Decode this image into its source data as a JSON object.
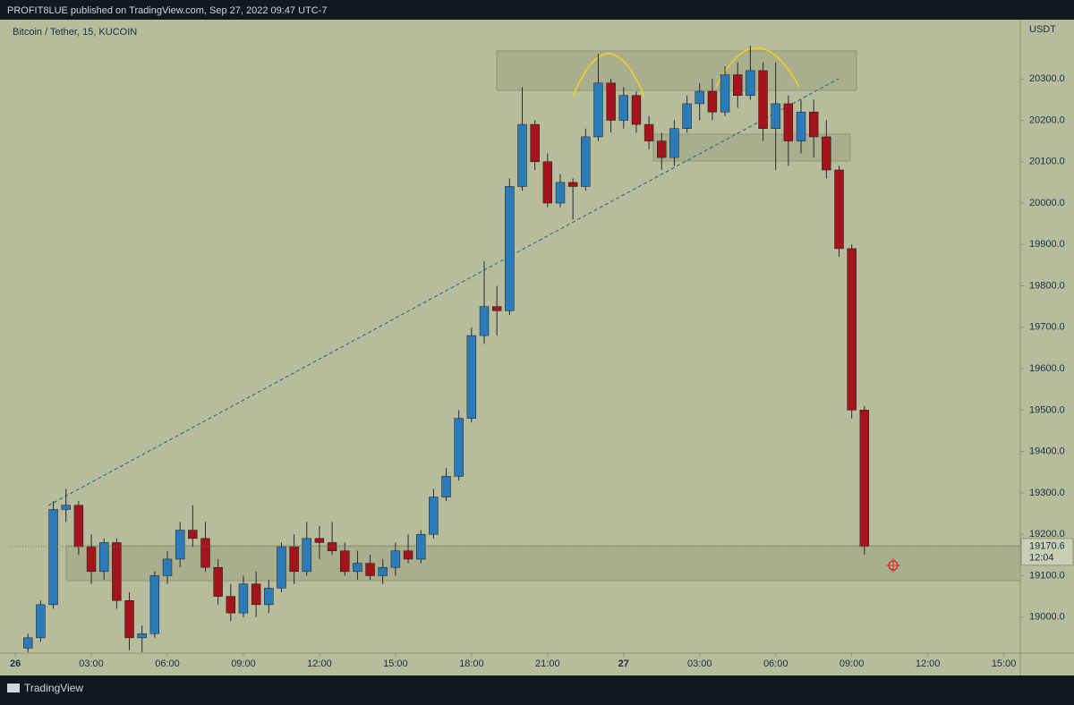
{
  "header": "PROFIT8LUE published on TradingView.com, Sep 27, 2022 09:47 UTC-7",
  "footer": "TradingView",
  "chart_data": {
    "type": "candlestick",
    "title": "Bitcoin / Tether, 15, KUCOIN",
    "y_axis_label": "USDT",
    "countdown": "12:04",
    "up_color": "#2b7bb9",
    "down_color": "#a3141c",
    "xlim": [
      -0.25,
      39.65
    ],
    "ylim": [
      18913,
      20443
    ],
    "yticks": [
      {
        "value": 19000,
        "label": "19000.0"
      },
      {
        "value": 19100,
        "label": "19100.0"
      },
      {
        "value": 19200,
        "label": "19200.0"
      },
      {
        "value": 19300,
        "label": "19300.0"
      },
      {
        "value": 19400,
        "label": "19400.0"
      },
      {
        "value": 19500,
        "label": "19500.0"
      },
      {
        "value": 19600,
        "label": "19600.0"
      },
      {
        "value": 19700,
        "label": "19700.0"
      },
      {
        "value": 19800,
        "label": "19800.0"
      },
      {
        "value": 19900,
        "label": "19900.0"
      },
      {
        "value": 20000,
        "label": "20000.0"
      },
      {
        "value": 20100,
        "label": "20100.0"
      },
      {
        "value": 20200,
        "label": "20200.0"
      },
      {
        "value": 20300,
        "label": "20300.0"
      }
    ],
    "xticks": [
      {
        "value": 0,
        "label": "26"
      },
      {
        "value": 3,
        "label": "03:00"
      },
      {
        "value": 6,
        "label": "06:00"
      },
      {
        "value": 9,
        "label": "09:00"
      },
      {
        "value": 12,
        "label": "12:00"
      },
      {
        "value": 15,
        "label": "15:00"
      },
      {
        "value": 18,
        "label": "18:00"
      },
      {
        "value": 21,
        "label": "21:00"
      },
      {
        "value": 24,
        "label": "27"
      },
      {
        "value": 27,
        "label": "03:00"
      },
      {
        "value": 30,
        "label": "06:00"
      },
      {
        "value": 33,
        "label": "09:00"
      },
      {
        "value": 36,
        "label": "12:00"
      },
      {
        "value": 39,
        "label": "15:00"
      }
    ],
    "x": [
      0.5,
      1,
      1.5,
      2,
      2.5,
      3,
      3.5,
      4,
      4.5,
      5,
      5.5,
      6,
      6.5,
      7,
      7.5,
      8,
      8.5,
      9,
      9.5,
      10,
      10.5,
      11,
      11.5,
      12,
      12.5,
      13,
      13.5,
      14,
      14.5,
      15,
      15.5,
      16,
      16.5,
      17,
      17.5,
      18,
      18.5,
      19,
      19.5,
      20,
      20.5,
      21,
      21.5,
      22,
      22.5,
      23,
      23.5,
      24,
      24.5,
      25,
      25.5,
      26,
      26.5,
      27,
      27.5,
      28,
      28.5,
      29,
      29.5,
      30,
      30.5,
      31,
      31.5,
      32,
      32.5,
      33,
      33.5
    ],
    "open": [
      18925,
      18950,
      19030,
      19260,
      19270,
      19170,
      19110,
      19180,
      19040,
      18950,
      18960,
      19100,
      19140,
      19210,
      19190,
      19120,
      19050,
      19010,
      19080,
      19030,
      19070,
      19170,
      19110,
      19190,
      19180,
      19160,
      19110,
      19130,
      19100,
      19120,
      19160,
      19140,
      19200,
      19290,
      19340,
      19480,
      19680,
      19750,
      19740,
      20040,
      20190,
      20100,
      20000,
      20050,
      20040,
      20160,
      20290,
      20200,
      20260,
      20190,
      20150,
      20110,
      20180,
      20240,
      20270,
      20220,
      20310,
      20260,
      20320,
      20180,
      20240,
      20150,
      20220,
      20160,
      20080,
      19890,
      19500
    ],
    "high": [
      18960,
      19040,
      19280,
      19310,
      19280,
      19200,
      19190,
      19190,
      19060,
      18980,
      19110,
      19160,
      19230,
      19270,
      19230,
      19140,
      19080,
      19100,
      19110,
      19090,
      19180,
      19200,
      19230,
      19220,
      19230,
      19180,
      19160,
      19150,
      19140,
      19180,
      19200,
      19210,
      19310,
      19360,
      19500,
      19700,
      19860,
      19800,
      20060,
      20280,
      20200,
      20120,
      20070,
      20060,
      20180,
      20360,
      20300,
      20280,
      20270,
      20210,
      20170,
      20200,
      20260,
      20290,
      20300,
      20330,
      20340,
      20380,
      20340,
      20340,
      20260,
      20250,
      20250,
      20200,
      20090,
      19900,
      19510
    ],
    "low": [
      18915,
      18940,
      19020,
      19230,
      19150,
      19080,
      19090,
      19020,
      18920,
      18915,
      18950,
      19080,
      19120,
      19170,
      19110,
      19030,
      18990,
      19000,
      19000,
      19010,
      19060,
      19080,
      19100,
      19140,
      19150,
      19100,
      19090,
      19090,
      19080,
      19100,
      19130,
      19130,
      19190,
      19280,
      19330,
      19470,
      19660,
      19680,
      19730,
      20030,
      20080,
      19990,
      19990,
      19960,
      20030,
      20150,
      20170,
      20180,
      20170,
      20130,
      20080,
      20090,
      20170,
      20200,
      20200,
      20210,
      20230,
      20250,
      20150,
      20080,
      20090,
      20120,
      20110,
      20060,
      19870,
      19480,
      19150
    ],
    "close": [
      18950,
      19030,
      19260,
      19270,
      19170,
      19110,
      19180,
      19040,
      18950,
      18960,
      19100,
      19140,
      19210,
      19190,
      19120,
      19050,
      19010,
      19080,
      19030,
      19070,
      19170,
      19110,
      19190,
      19180,
      19160,
      19110,
      19130,
      19100,
      19120,
      19160,
      19140,
      19200,
      19290,
      19340,
      19480,
      19680,
      19750,
      19740,
      20040,
      20190,
      20100,
      20000,
      20050,
      20040,
      20160,
      20290,
      20200,
      20260,
      20190,
      20150,
      20110,
      20180,
      20240,
      20270,
      20220,
      20310,
      20260,
      20320,
      20180,
      20240,
      20150,
      20220,
      20160,
      20080,
      19890,
      19500,
      19170.6
    ]
  }
}
